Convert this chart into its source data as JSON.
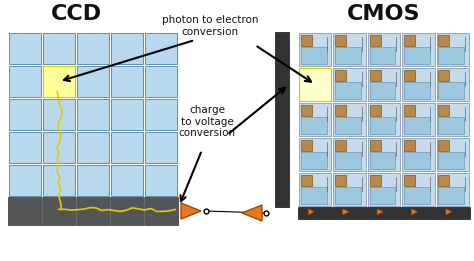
{
  "bg_color": "#ffffff",
  "title_ccd": "CCD",
  "title_cmos": "CMOS",
  "label_photon": "photon to electron\nconversion",
  "label_charge": "charge\nto voltage\nconversion",
  "ccd_grid_color_top": "#b8d8ee",
  "ccd_grid_color_bot": "#8ab8d0",
  "ccd_grid_line_color": "#6090aa",
  "ccd_bottom_color": "#666666",
  "cmos_cell_bg": "#c8dff0",
  "cmos_grid_line_color": "#8899aa",
  "amplifier_color": "#e87820",
  "yellow_path_color": "#e8c800",
  "highlight_color": "#fffff0",
  "dark_strip_color": "#333333",
  "figsize": [
    4.74,
    2.61
  ],
  "dpi": 100
}
